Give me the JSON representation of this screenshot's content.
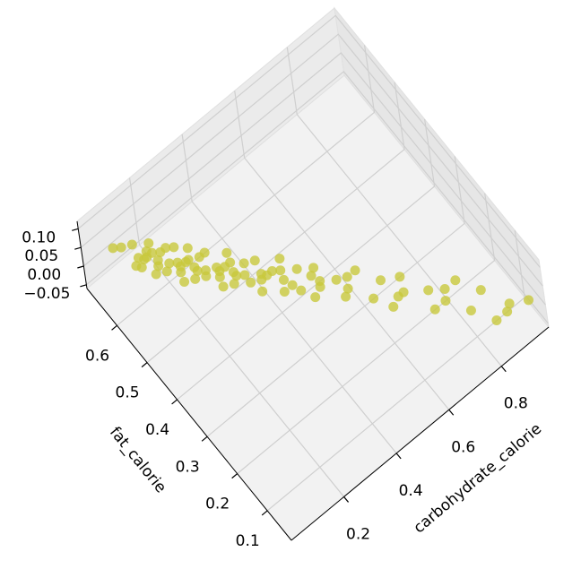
{
  "chart_data": {
    "type": "scatter3d",
    "x_label": "carbohydrate_calorie",
    "y_label": "fat_calorie",
    "xlim": [
      0.0,
      0.98
    ],
    "ylim": [
      0.02,
      0.7
    ],
    "zlim": [
      -0.06,
      0.12
    ],
    "xticks": [
      0.2,
      0.4,
      0.6,
      0.8
    ],
    "yticks": [
      0.1,
      0.2,
      0.3,
      0.4,
      0.5,
      0.6
    ],
    "zticks": [
      {
        "value": 0.1,
        "label": "0.10"
      },
      {
        "value": 0.05,
        "label": "0.05"
      },
      {
        "value": 0.0,
        "label": "0.00"
      },
      {
        "value": -0.05,
        "label": "−0.05"
      }
    ],
    "grid": true,
    "color": "#c8c83c",
    "x": [
      0.1,
      0.12,
      0.13,
      0.14,
      0.15,
      0.15,
      0.16,
      0.17,
      0.18,
      0.18,
      0.19,
      0.2,
      0.2,
      0.21,
      0.22,
      0.22,
      0.23,
      0.24,
      0.25,
      0.25,
      0.26,
      0.27,
      0.28,
      0.28,
      0.29,
      0.3,
      0.3,
      0.31,
      0.32,
      0.33,
      0.34,
      0.35,
      0.35,
      0.36,
      0.37,
      0.38,
      0.39,
      0.4,
      0.41,
      0.42,
      0.43,
      0.44,
      0.45,
      0.46,
      0.47,
      0.48,
      0.5,
      0.51,
      0.52,
      0.54,
      0.55,
      0.56,
      0.58,
      0.6,
      0.61,
      0.63,
      0.65,
      0.66,
      0.68,
      0.7,
      0.72,
      0.74,
      0.76,
      0.78,
      0.8,
      0.82,
      0.84,
      0.86,
      0.88,
      0.9,
      0.95,
      0.15,
      0.2,
      0.25,
      0.3,
      0.18,
      0.22,
      0.27,
      0.33,
      0.4,
      0.12,
      0.17,
      0.24,
      0.35,
      0.44,
      0.5
    ],
    "y": [
      0.69,
      0.68,
      0.62,
      0.64,
      0.67,
      0.59,
      0.63,
      0.6,
      0.63,
      0.58,
      0.65,
      0.54,
      0.62,
      0.56,
      0.58,
      0.62,
      0.53,
      0.57,
      0.54,
      0.57,
      0.52,
      0.59,
      0.48,
      0.56,
      0.5,
      0.52,
      0.56,
      0.47,
      0.51,
      0.48,
      0.51,
      0.45,
      0.53,
      0.42,
      0.49,
      0.44,
      0.45,
      0.48,
      0.39,
      0.44,
      0.41,
      0.43,
      0.37,
      0.45,
      0.34,
      0.41,
      0.35,
      0.36,
      0.39,
      0.3,
      0.34,
      0.31,
      0.33,
      0.26,
      0.33,
      0.22,
      0.28,
      0.23,
      0.23,
      0.26,
      0.16,
      0.2,
      0.16,
      0.18,
      0.11,
      0.18,
      0.06,
      0.13,
      0.06,
      0.07,
      0.05,
      0.63,
      0.59,
      0.55,
      0.51,
      0.61,
      0.57,
      0.53,
      0.49,
      0.44,
      0.63,
      0.64,
      0.61,
      0.47,
      0.39,
      0.38
    ],
    "z": [
      0,
      0,
      0,
      0,
      0,
      0,
      0,
      0,
      0,
      0,
      0,
      0,
      0,
      0,
      0,
      0,
      0,
      0,
      0,
      0,
      0,
      0,
      0,
      0,
      0,
      0,
      0,
      0,
      0,
      0,
      0,
      0,
      0,
      0,
      0,
      0,
      0,
      0,
      0,
      0,
      0,
      0,
      0,
      0,
      0,
      0,
      0,
      0,
      0,
      0,
      0,
      0,
      0,
      0,
      0,
      0,
      0,
      0,
      0,
      0,
      0,
      0,
      0,
      0,
      0,
      0,
      0,
      0,
      0,
      0,
      0,
      0,
      0,
      0,
      0,
      0,
      0,
      0,
      0,
      0,
      0,
      0,
      0,
      0,
      0,
      0
    ]
  }
}
